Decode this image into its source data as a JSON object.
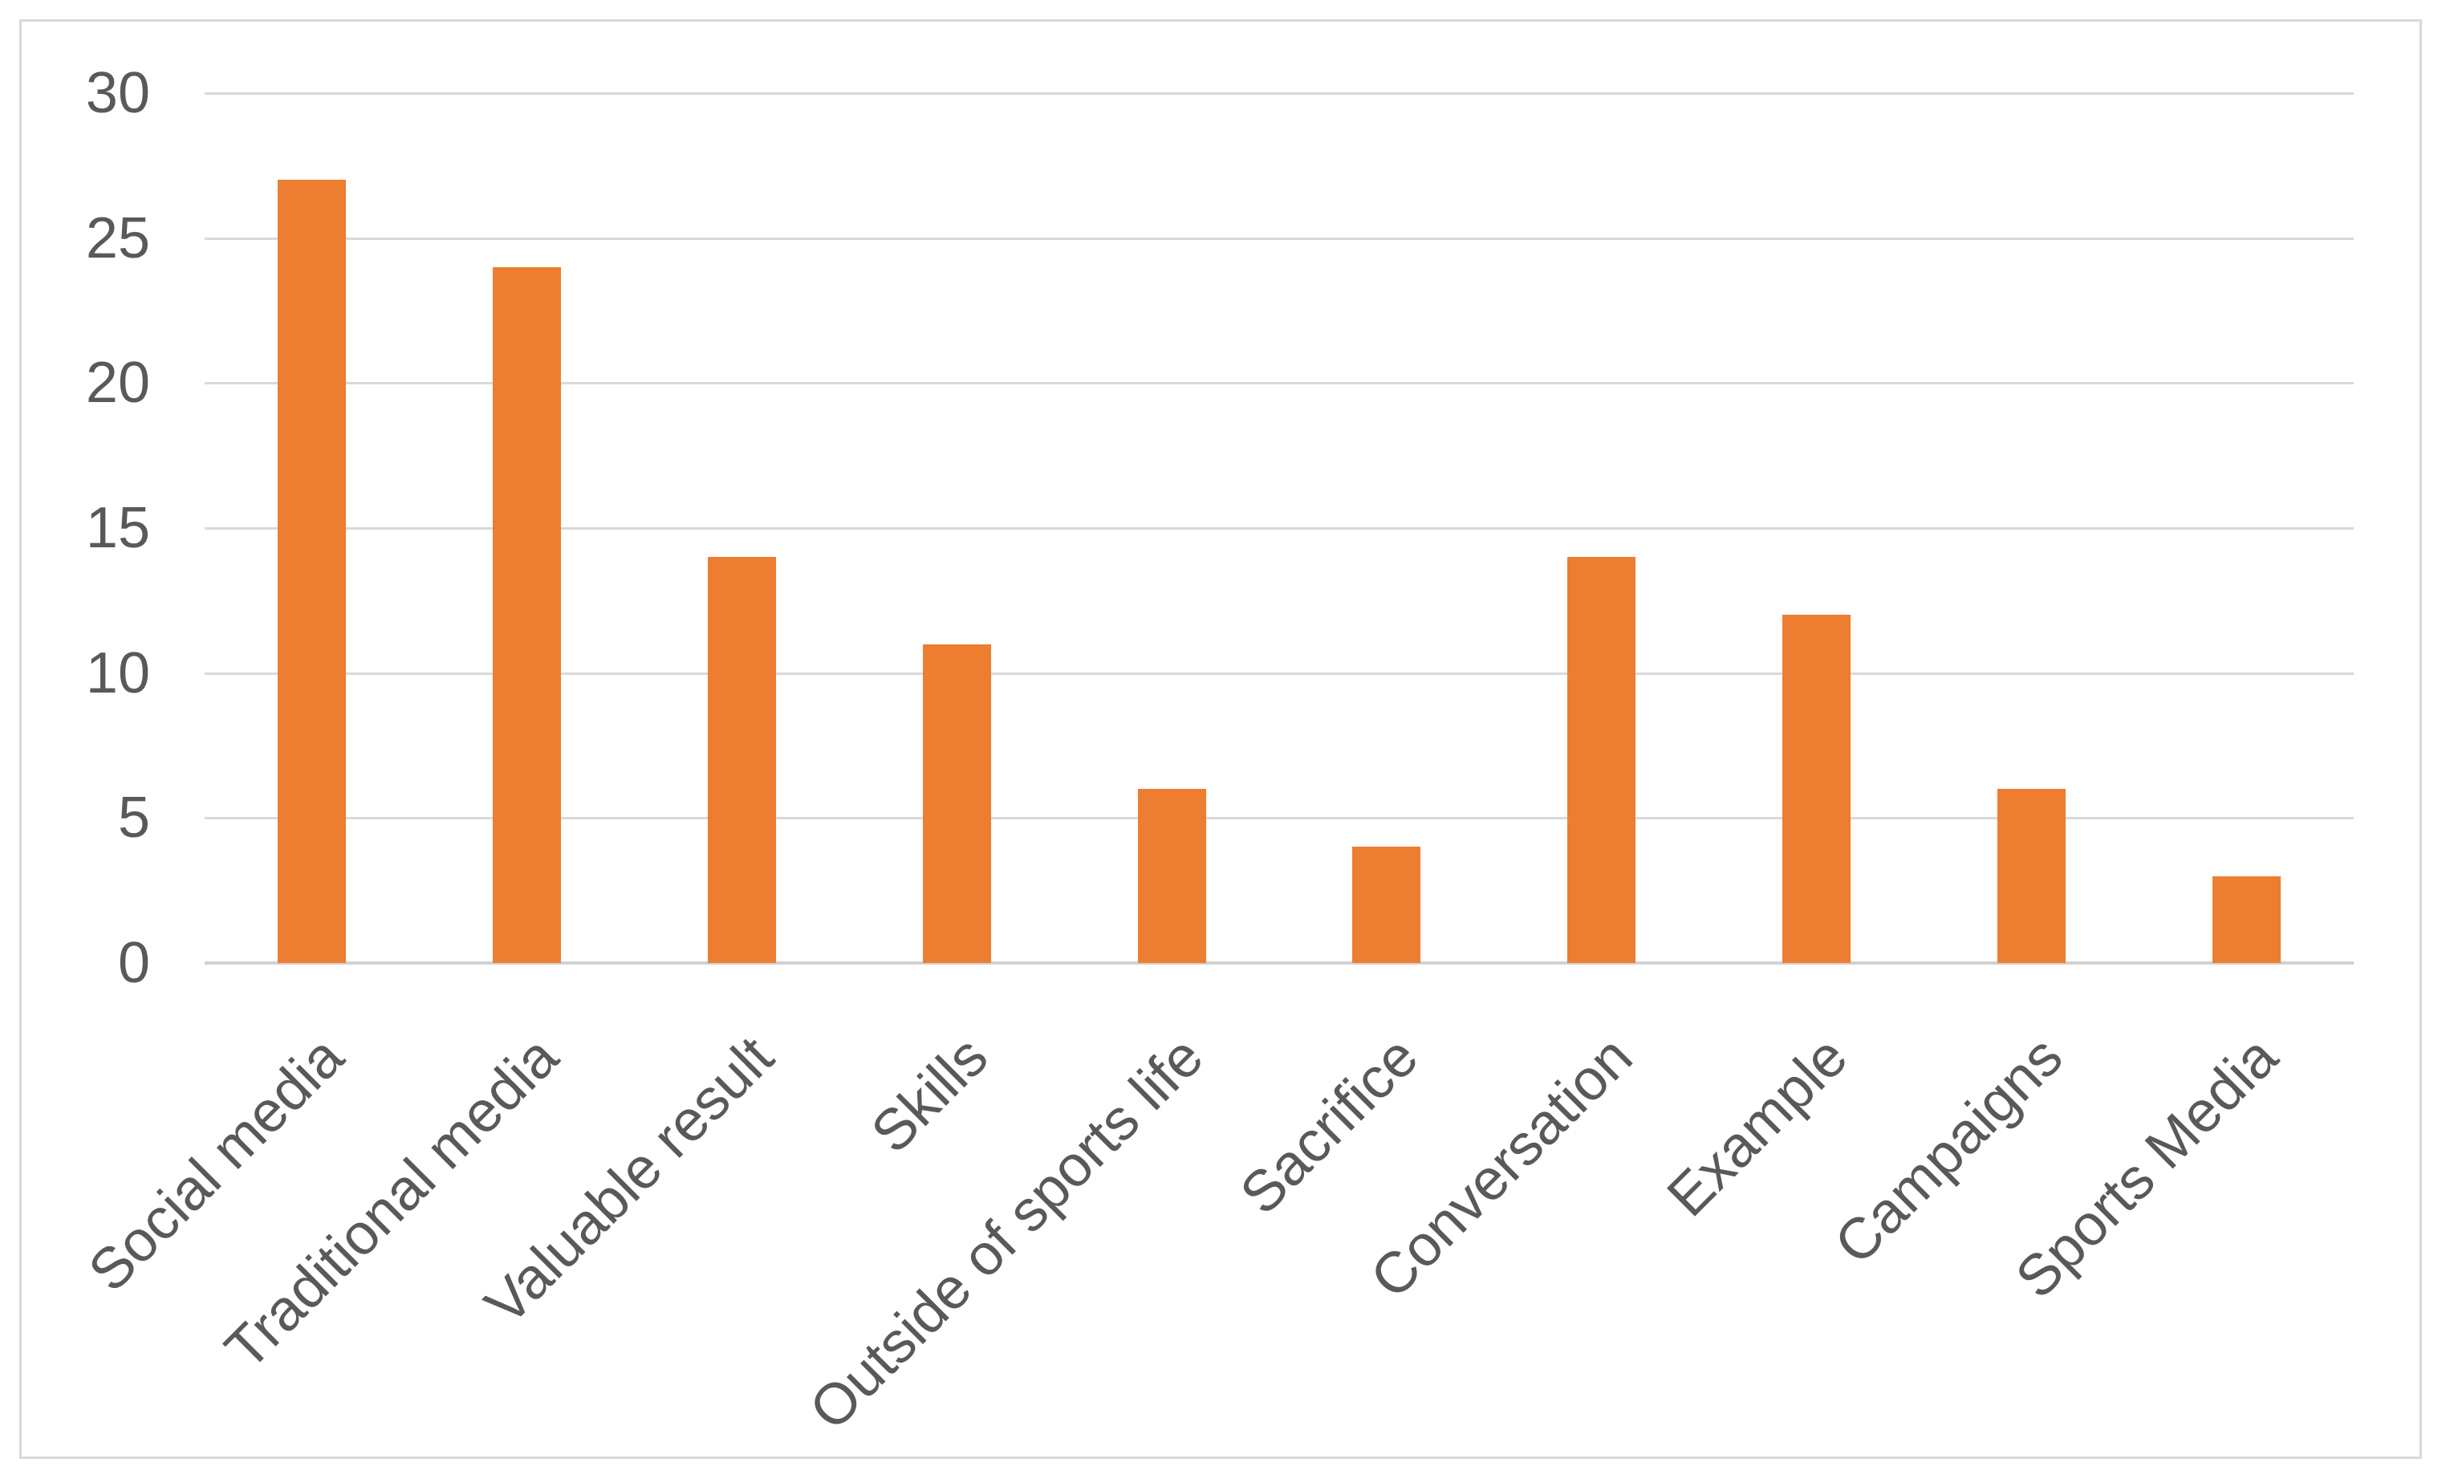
{
  "chart_data": {
    "type": "bar",
    "title": "",
    "xlabel": "",
    "ylabel": "",
    "categories": [
      "Social media",
      "Traditional media",
      "Valuable result",
      "Skills",
      "Outside of sports life",
      "Sacrifice",
      "Conversation",
      "Example",
      "Campaigns",
      "Sports Media"
    ],
    "values": [
      27,
      24,
      14,
      11,
      6,
      4,
      14,
      12,
      6,
      3
    ],
    "ylim": [
      0,
      30
    ],
    "yticks": [
      0,
      5,
      10,
      15,
      20,
      25,
      30
    ],
    "grid": true,
    "legend": false,
    "bar_color": "#ED7D31",
    "gridline_color": "#D9D9D9",
    "axis_line_color": "#D1D1D1",
    "tick_label_color": "#595959",
    "frame_border_color": "#D9D9D9",
    "background_color": "#FFFFFF"
  }
}
